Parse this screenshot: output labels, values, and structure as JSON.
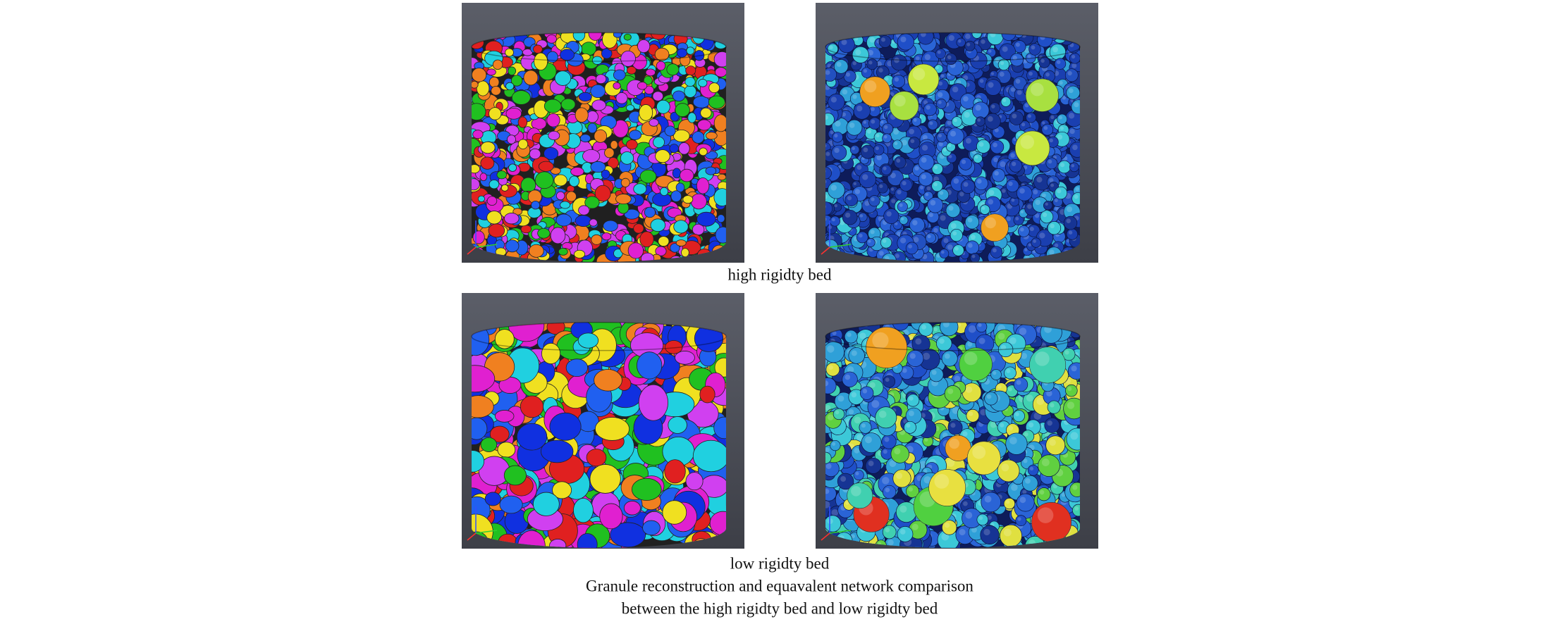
{
  "figure": {
    "captions": {
      "top": "high rigidty bed",
      "bottom": "low rigidty bed"
    },
    "caption": [
      "Granule reconstruction and equavalent network comparison",
      "between the high rigidty bed and low rigidty bed"
    ]
  }
}
